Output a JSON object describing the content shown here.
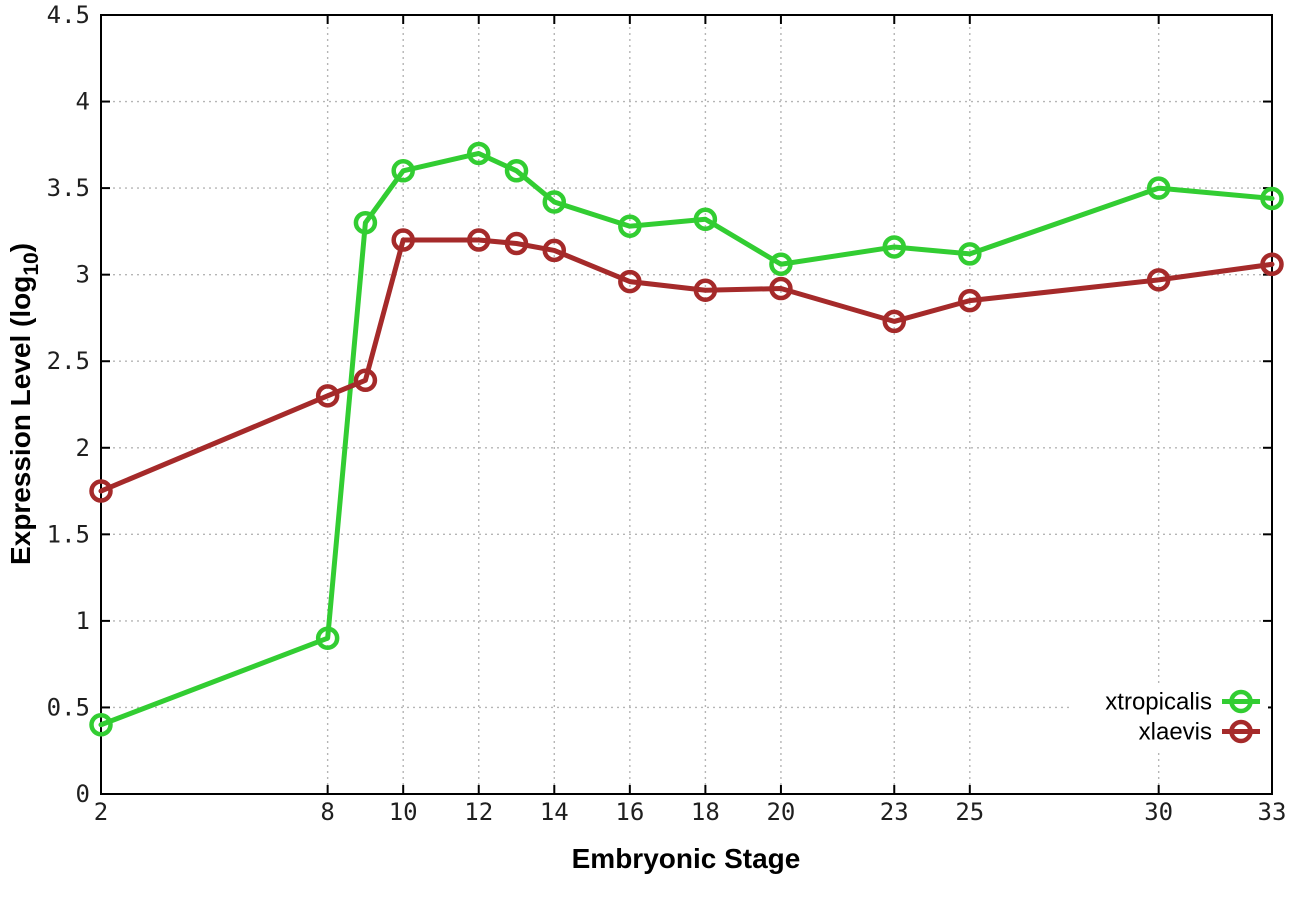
{
  "chart_data": {
    "type": "line",
    "xlabel": "Embryonic Stage",
    "ylabel": "Expression Level (log10)",
    "ylabel_parts": [
      {
        "text": "Expression Level (log",
        "sub": false
      },
      {
        "text": "10",
        "sub": true
      },
      {
        "text": ")",
        "sub": false
      }
    ],
    "x": [
      2,
      8,
      9,
      10,
      12,
      13,
      14,
      16,
      18,
      20,
      23,
      25,
      30,
      33
    ],
    "xticks": [
      2,
      8,
      10,
      12,
      14,
      16,
      18,
      20,
      23,
      25,
      30,
      33
    ],
    "yticks": [
      0,
      0.5,
      1,
      1.5,
      2,
      2.5,
      3,
      3.5,
      4,
      4.5
    ],
    "xlim": [
      2,
      33
    ],
    "ylim": [
      0,
      4.5
    ],
    "grid": true,
    "grid_style": "dotted",
    "legend_position": "bottom-right-inside",
    "background_color": "#ffffff",
    "border_color": "#000000",
    "grid_color": "#b5b5b5",
    "series": [
      {
        "name": "xtropicalis",
        "color": "#32cd32",
        "marker": "open-circle",
        "values": [
          0.4,
          0.9,
          3.3,
          3.6,
          3.7,
          3.6,
          3.42,
          3.28,
          3.32,
          3.06,
          3.16,
          3.12,
          3.5,
          3.44
        ]
      },
      {
        "name": "xlaevis",
        "color": "#a52a2a",
        "marker": "open-circle",
        "values": [
          1.75,
          2.3,
          2.39,
          3.2,
          3.2,
          3.18,
          3.14,
          2.96,
          2.91,
          2.92,
          2.73,
          2.85,
          2.97,
          3.06
        ]
      }
    ]
  }
}
